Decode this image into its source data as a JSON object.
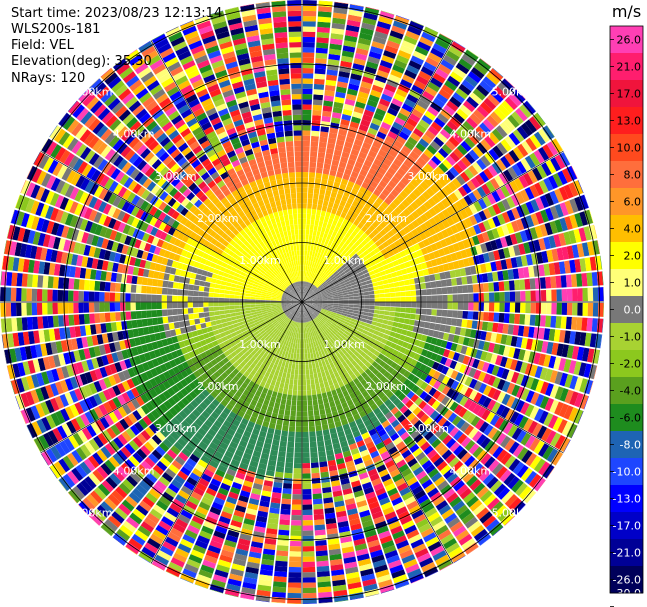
{
  "header": {
    "start_time": "Start time: 2023/08/23 12:13:14",
    "instrument": "WLS200s-181",
    "field": "Field: VEL",
    "elevation": "Elevation(deg): 35.30",
    "nrays": "NRays: 120"
  },
  "chart_data": {
    "type": "heatmap",
    "subtype": "polar-ppi",
    "units": "m/s",
    "nrays": 120,
    "range_rings_km": [
      1.0,
      2.0,
      3.0,
      4.0,
      5.0
    ],
    "range_ring_labels": [
      "1.00km",
      "2.00km",
      "3.00km",
      "4.00km",
      "5.00km"
    ],
    "colorbar": {
      "label": "m/s",
      "ticks": [
        "26.0",
        "21.0",
        "17.0",
        "13.0",
        "10.0",
        "8.0",
        "6.0",
        "4.0",
        "2.0",
        "1.0",
        "0.0",
        "-1.0",
        "-2.0",
        "-4.0",
        "-6.0",
        "-8.0",
        "-10.0",
        "-13.0",
        "-17.0",
        "-21.0",
        "-26.0",
        "-30.0"
      ],
      "colors": [
        "#ff3fb4",
        "#ff1e6e",
        "#f0143c",
        "#ff1e1e",
        "#ff4a1e",
        "#ff6e3c",
        "#ff9628",
        "#ffbe00",
        "#ffff00",
        "#ffff78",
        "#787878",
        "#a8d232",
        "#8cc81e",
        "#5aa01e",
        "#1e8c1e",
        "#1e64b4",
        "#1e46ff",
        "#0000ff",
        "#0000c8",
        "#000096",
        "#00005a"
      ]
    },
    "velocity_zones": [
      {
        "description": "inner core",
        "range_km": [
          0,
          0.5
        ],
        "value_ms": 0.0
      },
      {
        "description": "north sector",
        "azimuth_deg": [
          280,
          80
        ],
        "range_km": [
          0.5,
          3.1
        ],
        "values_ms": [
          2.0,
          4.0,
          6.0
        ]
      },
      {
        "description": "south sector",
        "azimuth_deg": [
          100,
          260
        ],
        "range_km": [
          0.5,
          3.1
        ],
        "values_ms": [
          -2.0,
          -4.0,
          -6.0
        ]
      },
      {
        "description": "noise ring",
        "range_km": [
          3.1,
          5.4
        ],
        "values_ms": "random"
      }
    ]
  }
}
